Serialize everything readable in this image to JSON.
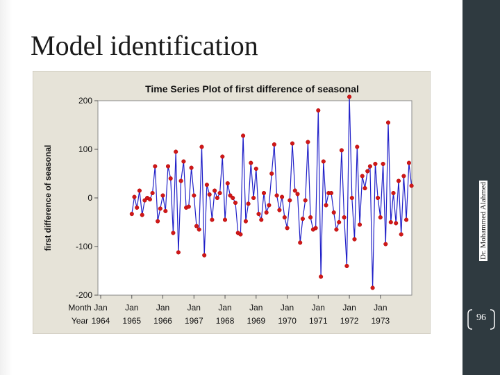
{
  "slide": {
    "title": "Model identification",
    "author": "Dr. Mohammed Alahmed",
    "page_number": "96"
  },
  "chart_data": {
    "type": "line",
    "title": "Time Series Plot of first difference of seasonal",
    "ylabel": "first difference of seasonal",
    "xlabel_rows": [
      "Month",
      "Year"
    ],
    "ylim": [
      -200,
      200
    ],
    "yticks": [
      200,
      100,
      0,
      -100,
      -200
    ],
    "xticks": [
      {
        "index": 0,
        "month": "Jan",
        "year": "1964"
      },
      {
        "index": 12,
        "month": "Jan",
        "year": "1965"
      },
      {
        "index": 24,
        "month": "Jan",
        "year": "1966"
      },
      {
        "index": 36,
        "month": "Jan",
        "year": "1967"
      },
      {
        "index": 48,
        "month": "Jan",
        "year": "1968"
      },
      {
        "index": 60,
        "month": "Jan",
        "year": "1969"
      },
      {
        "index": 72,
        "month": "Jan",
        "year": "1970"
      },
      {
        "index": 84,
        "month": "Jan",
        "year": "1971"
      },
      {
        "index": 96,
        "month": "Jan",
        "year": "1972"
      },
      {
        "index": 108,
        "month": "Jan",
        "year": "1973"
      }
    ],
    "x_start_index": 12,
    "values": [
      -33,
      2,
      -20,
      15,
      -35,
      -5,
      0,
      -3,
      10,
      65,
      -48,
      -22,
      5,
      -27,
      65,
      40,
      -72,
      95,
      -112,
      35,
      75,
      -20,
      -18,
      62,
      5,
      -58,
      -65,
      105,
      -118,
      27,
      7,
      -45,
      15,
      0,
      10,
      85,
      -45,
      30,
      5,
      0,
      -10,
      -72,
      -75,
      128,
      -48,
      -12,
      72,
      0,
      60,
      -33,
      -45,
      10,
      -30,
      -15,
      50,
      110,
      5,
      -25,
      2,
      -40,
      -62,
      -5,
      112,
      15,
      8,
      -92,
      -43,
      -5,
      115,
      -40,
      -65,
      -62,
      180,
      -162,
      75,
      -15,
      10,
      10,
      -30,
      -65,
      -50,
      98,
      -40,
      -140,
      208,
      0,
      -85,
      105,
      -55,
      45,
      20,
      55,
      65,
      -185,
      70,
      0,
      -40,
      70,
      -95,
      155,
      -50,
      10,
      -52,
      35,
      -75,
      45,
      -45,
      72,
      25
    ]
  }
}
